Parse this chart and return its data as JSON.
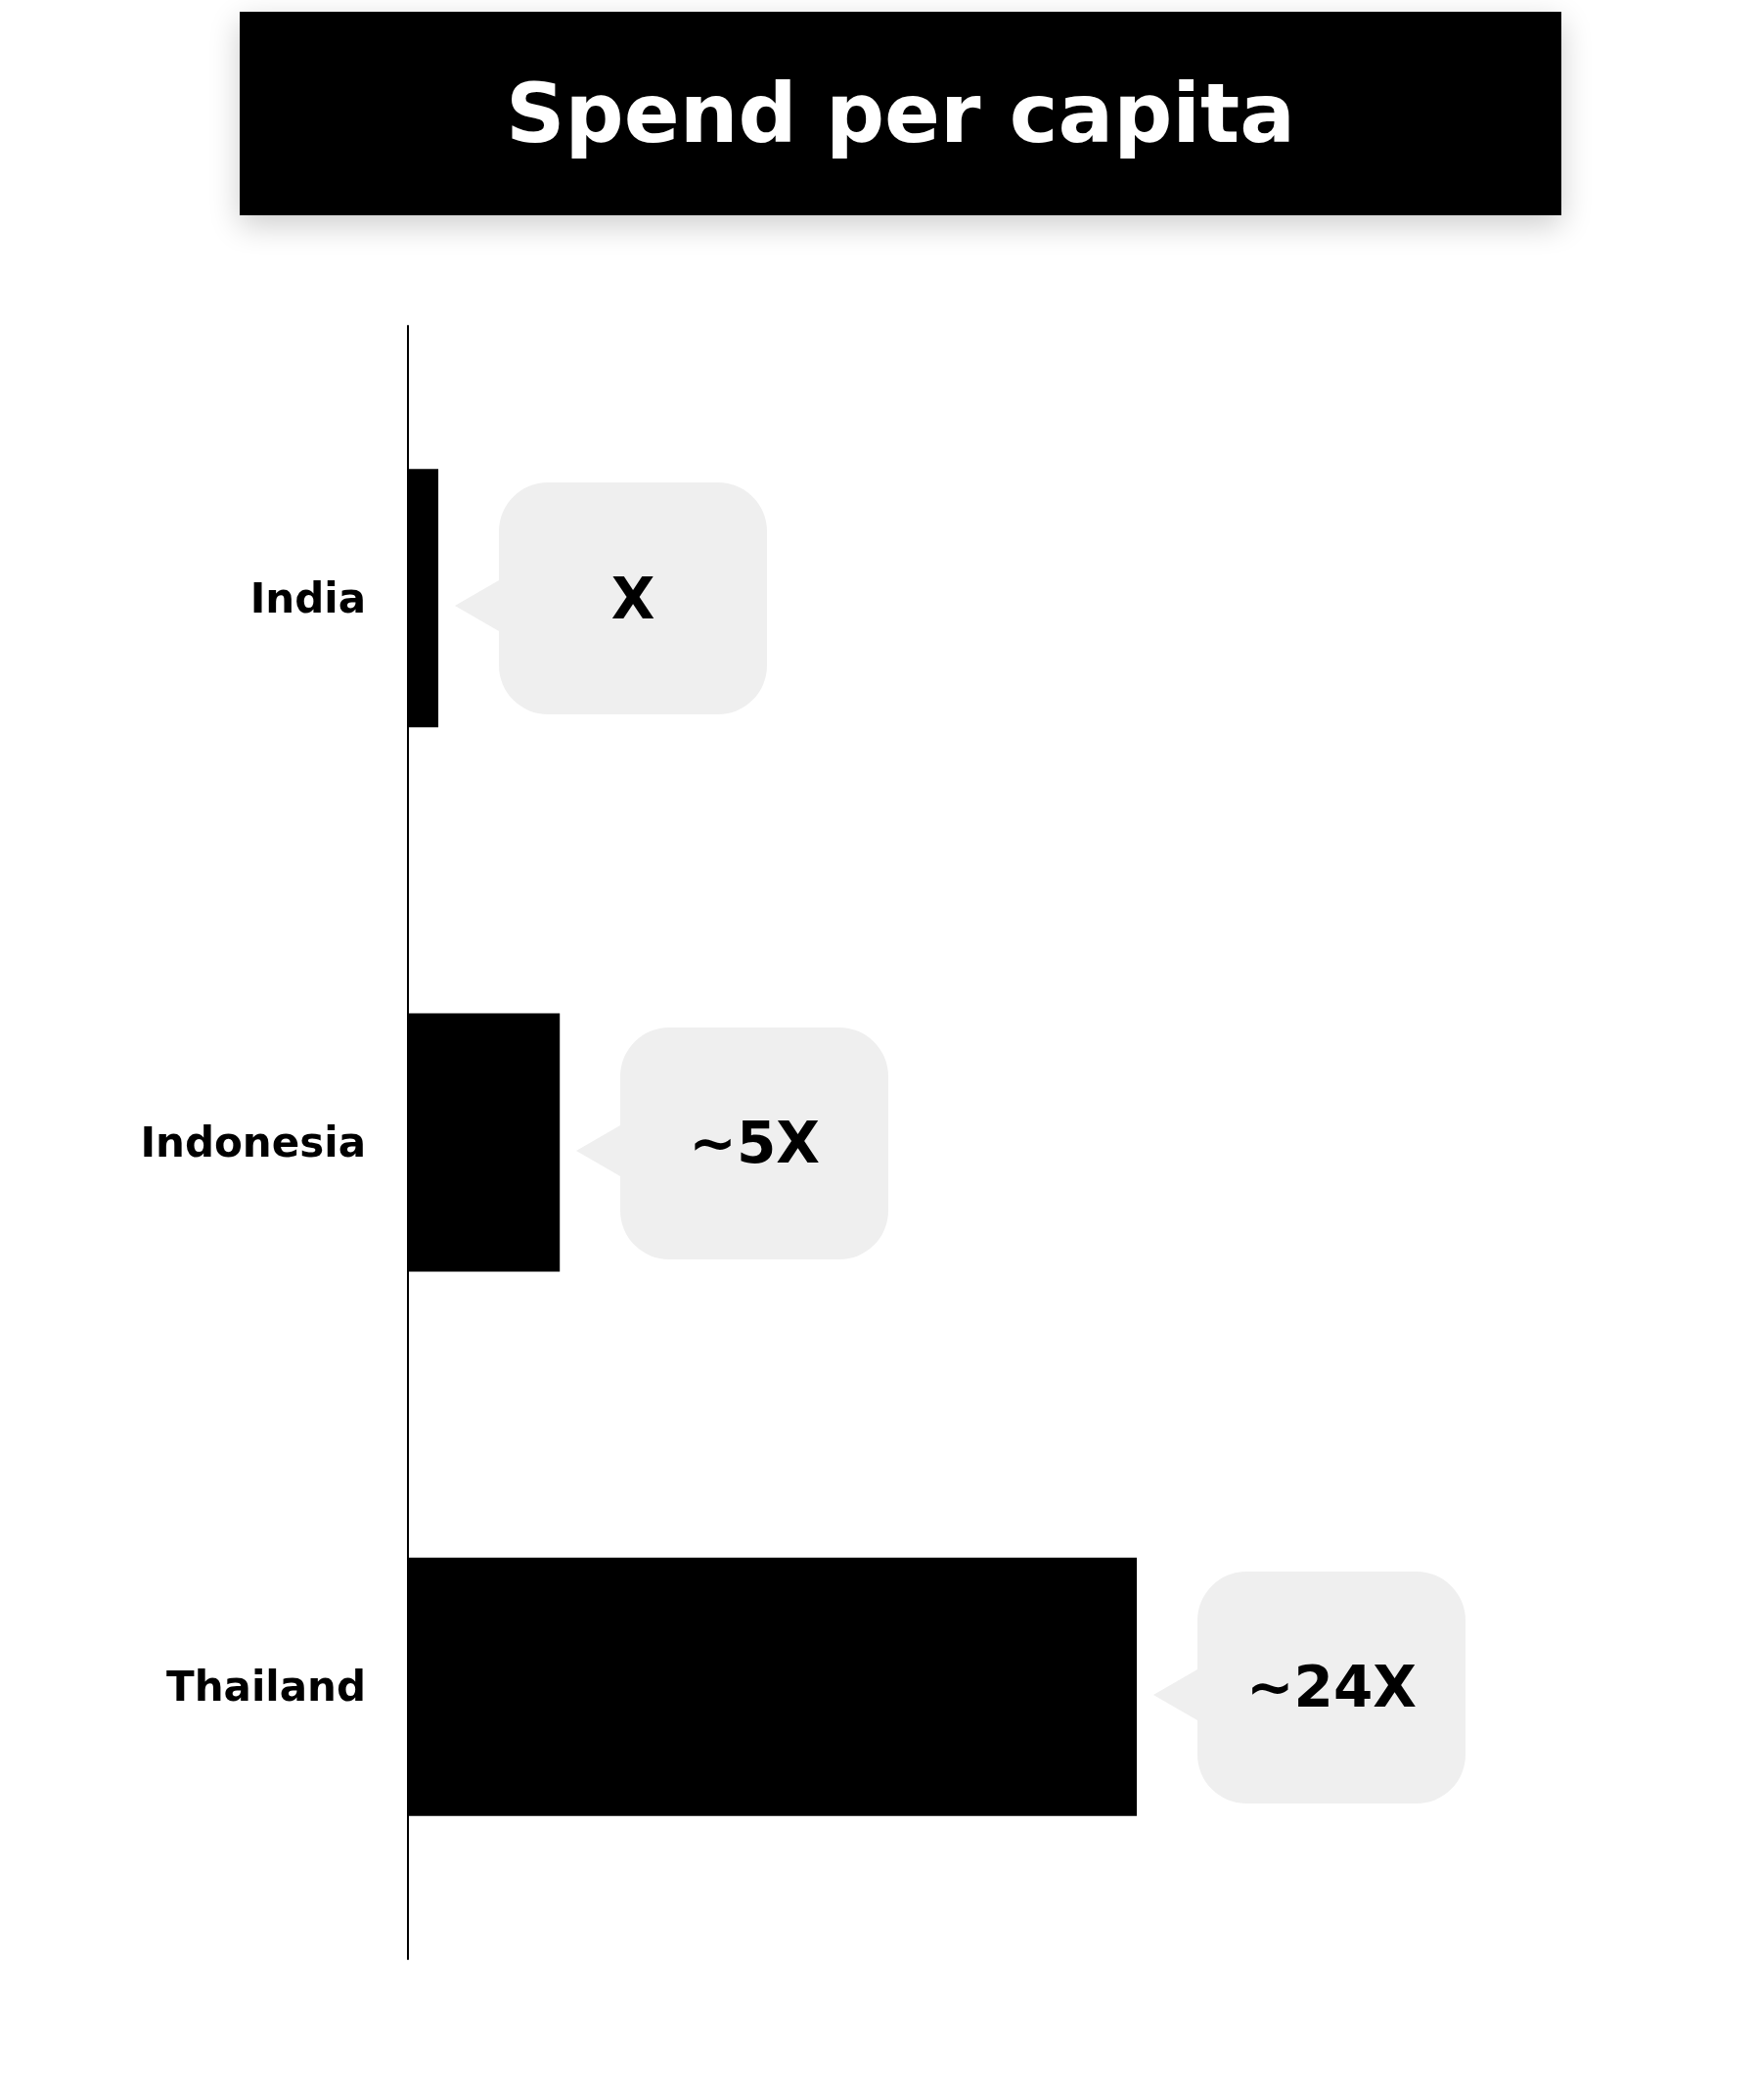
{
  "chart_data": {
    "type": "bar",
    "title": "Spend per capita",
    "orientation": "horizontal",
    "categories": [
      "India",
      "Indonesia",
      "Thailand"
    ],
    "values": [
      1,
      5,
      24
    ],
    "color": "#000000",
    "value_labels": [
      "X",
      "~5X",
      "~24X"
    ]
  }
}
